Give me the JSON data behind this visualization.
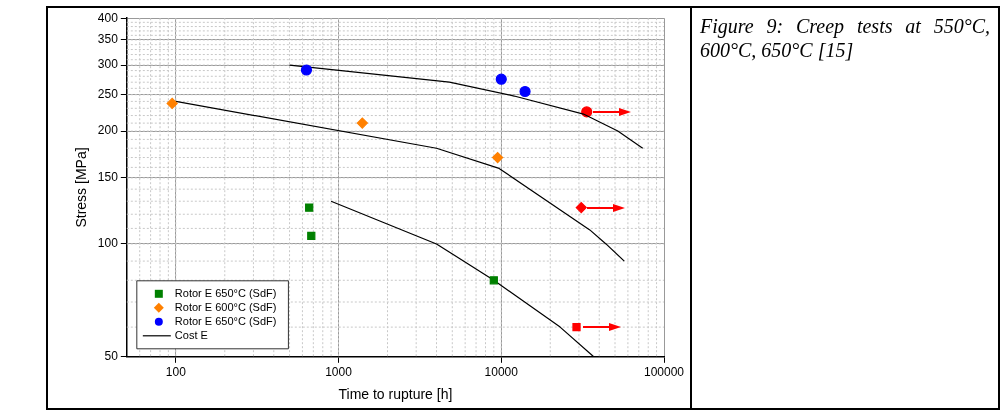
{
  "chart_data": {
    "type": "scatter",
    "xlabel": "Time to rupture [h]",
    "ylabel": "Stress [MPa]",
    "log": "xy",
    "xlim": [
      50,
      100000
    ],
    "xticks": [
      100,
      1000,
      10000,
      100000
    ],
    "ylim": [
      50,
      400
    ],
    "yticks": [
      50,
      100,
      150,
      200,
      250,
      300,
      350,
      400
    ],
    "grid": true,
    "legend": "bottom left",
    "annotations": [
      "Figure 9: Creep tests at 550°C, 600°C, 650°C [15]"
    ],
    "series": [
      {
        "name": "Rotor E 650°C (SdF)",
        "marker": "square",
        "color": "#008000",
        "x": [
          660,
          680,
          9000
        ],
        "values": [
          125,
          105,
          80
        ]
      },
      {
        "name": "Rotor E 600°C (SdF)",
        "marker": "diamond",
        "color": "#ff8000",
        "x": [
          95,
          1400,
          9500
        ],
        "values": [
          237,
          210,
          170
        ]
      },
      {
        "name": "Rotor E 650°C (SdF)",
        "marker": "circle",
        "color": "#0000ff",
        "x": [
          635,
          10000,
          14000
        ],
        "values": [
          291,
          275,
          255
        ]
      },
      {
        "name": "Cost E",
        "type": "line",
        "marker": "none",
        "color": "#000000",
        "x": [
          500,
          4800,
          12000,
          32000,
          52000,
          74000
        ],
        "values": [
          300,
          270,
          248,
          222,
          200,
          180
        ]
      },
      {
        "type": "line",
        "marker": "none",
        "color": "#000000",
        "x": [
          100,
          4000,
          9700,
          35000,
          44000,
          57000
        ],
        "values": [
          240,
          180,
          159,
          109,
          100,
          90
        ]
      },
      {
        "type": "line",
        "marker": "none",
        "color": "#000000",
        "x": [
          900,
          4000,
          9000,
          23000,
          37000
        ],
        "values": [
          130,
          100,
          80,
          60,
          50
        ]
      },
      {
        "marker": "circle",
        "color": "#ff0000",
        "x": [
          33500
        ],
        "values": [
          225
        ]
      },
      {
        "marker": "diamond",
        "color": "#ff0000",
        "x": [
          31000
        ],
        "values": [
          125
        ]
      },
      {
        "marker": "square",
        "color": "#ff0000",
        "x": [
          29000
        ],
        "values": [
          60
        ]
      }
    ]
  }
}
